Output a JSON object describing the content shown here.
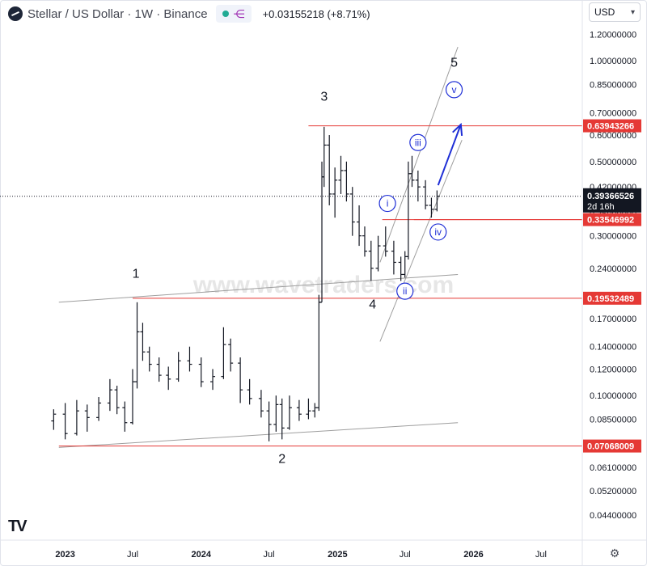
{
  "header": {
    "symbol_title": "Stellar / US Dollar · 1W · Binance",
    "change": "+0.03155218 (+8.71%)"
  },
  "currency_selector": {
    "value": "USD",
    "chevron": "chevron-down-icon"
  },
  "watermark": "www.wavetraders.com",
  "logo": "TV",
  "chart_data": {
    "type": "candlestick",
    "scale": "log",
    "ylim": [
      0.037,
      1.3
    ],
    "x_tick_labels": [
      "2023",
      "Jul",
      "2024",
      "Jul",
      "2025",
      "Jul",
      "2026",
      "Jul"
    ],
    "y_tick_labels": [
      "1.20000000",
      "1.00000000",
      "0.85000000",
      "0.70000000",
      "0.60000000",
      "0.50000000",
      "0.42000000",
      "0.35000000",
      "0.30000000",
      "0.24000000",
      "0.20000000",
      "0.17000000",
      "0.14000000",
      "0.12000000",
      "0.10000000",
      "0.08500000",
      "0.07000000",
      "0.06100000",
      "0.05200000",
      "0.04400000"
    ],
    "last_price": {
      "value": "0.39366526",
      "countdown": "2d 16h"
    },
    "horizontal_levels": [
      "0.63943266",
      "0.33546992",
      "0.19532489",
      "0.07068009"
    ],
    "wave_labels": [
      "1",
      "2",
      "3",
      "4",
      "5"
    ],
    "subwave_labels": [
      "i",
      "ii",
      "iii",
      "iv",
      "v"
    ],
    "colors": {
      "level": "#e53935",
      "subwave": "#1f2fd6",
      "label_bg": "#131722",
      "channel": "#9e9e9e"
    },
    "series": [
      {
        "t": "2022-12-01",
        "o": 0.084,
        "h": 0.091,
        "l": 0.079,
        "c": 0.088
      },
      {
        "t": "2023-01-01",
        "o": 0.088,
        "h": 0.095,
        "l": 0.074,
        "c": 0.077
      },
      {
        "t": "2023-02-01",
        "o": 0.077,
        "h": 0.097,
        "l": 0.076,
        "c": 0.09
      },
      {
        "t": "2023-03-01",
        "o": 0.09,
        "h": 0.094,
        "l": 0.078,
        "c": 0.086
      },
      {
        "t": "2023-04-01",
        "o": 0.086,
        "h": 0.099,
        "l": 0.084,
        "c": 0.095
      },
      {
        "t": "2023-05-01",
        "o": 0.095,
        "h": 0.112,
        "l": 0.09,
        "c": 0.104
      },
      {
        "t": "2023-05-20",
        "o": 0.104,
        "h": 0.107,
        "l": 0.088,
        "c": 0.092
      },
      {
        "t": "2023-06-10",
        "o": 0.092,
        "h": 0.096,
        "l": 0.078,
        "c": 0.083
      },
      {
        "t": "2023-07-01",
        "o": 0.083,
        "h": 0.12,
        "l": 0.082,
        "c": 0.11
      },
      {
        "t": "2023-07-13",
        "o": 0.11,
        "h": 0.19,
        "l": 0.105,
        "c": 0.155
      },
      {
        "t": "2023-07-28",
        "o": 0.155,
        "h": 0.165,
        "l": 0.127,
        "c": 0.135
      },
      {
        "t": "2023-08-15",
        "o": 0.135,
        "h": 0.14,
        "l": 0.118,
        "c": 0.124
      },
      {
        "t": "2023-09-10",
        "o": 0.124,
        "h": 0.13,
        "l": 0.11,
        "c": 0.115
      },
      {
        "t": "2023-10-05",
        "o": 0.115,
        "h": 0.122,
        "l": 0.104,
        "c": 0.112
      },
      {
        "t": "2023-11-01",
        "o": 0.112,
        "h": 0.135,
        "l": 0.11,
        "c": 0.127
      },
      {
        "t": "2023-12-01",
        "o": 0.127,
        "h": 0.14,
        "l": 0.118,
        "c": 0.124
      },
      {
        "t": "2024-01-01",
        "o": 0.124,
        "h": 0.13,
        "l": 0.106,
        "c": 0.11
      },
      {
        "t": "2024-02-01",
        "o": 0.11,
        "h": 0.12,
        "l": 0.104,
        "c": 0.114
      },
      {
        "t": "2024-03-01",
        "o": 0.114,
        "h": 0.16,
        "l": 0.112,
        "c": 0.142
      },
      {
        "t": "2024-03-20",
        "o": 0.142,
        "h": 0.148,
        "l": 0.118,
        "c": 0.125
      },
      {
        "t": "2024-04-15",
        "o": 0.125,
        "h": 0.13,
        "l": 0.095,
        "c": 0.104
      },
      {
        "t": "2024-05-10",
        "o": 0.104,
        "h": 0.112,
        "l": 0.094,
        "c": 0.098
      },
      {
        "t": "2024-06-10",
        "o": 0.098,
        "h": 0.104,
        "l": 0.086,
        "c": 0.09
      },
      {
        "t": "2024-07-01",
        "o": 0.09,
        "h": 0.096,
        "l": 0.073,
        "c": 0.082
      },
      {
        "t": "2024-07-20",
        "o": 0.082,
        "h": 0.1,
        "l": 0.078,
        "c": 0.094
      },
      {
        "t": "2024-08-05",
        "o": 0.094,
        "h": 0.098,
        "l": 0.074,
        "c": 0.08
      },
      {
        "t": "2024-08-25",
        "o": 0.08,
        "h": 0.1,
        "l": 0.079,
        "c": 0.092
      },
      {
        "t": "2024-09-20",
        "o": 0.092,
        "h": 0.097,
        "l": 0.084,
        "c": 0.088
      },
      {
        "t": "2024-10-15",
        "o": 0.088,
        "h": 0.098,
        "l": 0.085,
        "c": 0.09
      },
      {
        "t": "2024-11-01",
        "o": 0.09,
        "h": 0.095,
        "l": 0.086,
        "c": 0.092
      },
      {
        "t": "2024-11-12",
        "o": 0.092,
        "h": 0.2,
        "l": 0.09,
        "c": 0.19
      },
      {
        "t": "2024-11-20",
        "o": 0.19,
        "h": 0.5,
        "l": 0.19,
        "c": 0.45
      },
      {
        "t": "2024-11-26",
        "o": 0.45,
        "h": 0.635,
        "l": 0.42,
        "c": 0.56
      },
      {
        "t": "2024-12-10",
        "o": 0.56,
        "h": 0.6,
        "l": 0.37,
        "c": 0.4
      },
      {
        "t": "2024-12-25",
        "o": 0.4,
        "h": 0.48,
        "l": 0.34,
        "c": 0.44
      },
      {
        "t": "2025-01-10",
        "o": 0.44,
        "h": 0.52,
        "l": 0.4,
        "c": 0.47
      },
      {
        "t": "2025-01-25",
        "o": 0.47,
        "h": 0.5,
        "l": 0.38,
        "c": 0.4
      },
      {
        "t": "2025-02-10",
        "o": 0.4,
        "h": 0.42,
        "l": 0.3,
        "c": 0.33
      },
      {
        "t": "2025-02-28",
        "o": 0.33,
        "h": 0.37,
        "l": 0.28,
        "c": 0.3
      },
      {
        "t": "2025-03-15",
        "o": 0.3,
        "h": 0.32,
        "l": 0.26,
        "c": 0.27
      },
      {
        "t": "2025-04-01",
        "o": 0.27,
        "h": 0.29,
        "l": 0.22,
        "c": 0.24
      },
      {
        "t": "2025-04-20",
        "o": 0.24,
        "h": 0.3,
        "l": 0.235,
        "c": 0.28
      },
      {
        "t": "2025-05-10",
        "o": 0.28,
        "h": 0.32,
        "l": 0.26,
        "c": 0.27
      },
      {
        "t": "2025-06-01",
        "o": 0.27,
        "h": 0.29,
        "l": 0.23,
        "c": 0.25
      },
      {
        "t": "2025-06-20",
        "o": 0.25,
        "h": 0.26,
        "l": 0.22,
        "c": 0.23
      },
      {
        "t": "2025-07-01",
        "o": 0.23,
        "h": 0.27,
        "l": 0.225,
        "c": 0.26
      },
      {
        "t": "2025-07-10",
        "o": 0.26,
        "h": 0.5,
        "l": 0.255,
        "c": 0.46
      },
      {
        "t": "2025-07-20",
        "o": 0.46,
        "h": 0.52,
        "l": 0.42,
        "c": 0.44
      },
      {
        "t": "2025-08-05",
        "o": 0.44,
        "h": 0.47,
        "l": 0.38,
        "c": 0.42
      },
      {
        "t": "2025-08-25",
        "o": 0.42,
        "h": 0.44,
        "l": 0.36,
        "c": 0.37
      },
      {
        "t": "2025-09-10",
        "o": 0.37,
        "h": 0.39,
        "l": 0.34,
        "c": 0.36
      },
      {
        "t": "2025-09-25",
        "o": 0.36,
        "h": 0.41,
        "l": 0.355,
        "c": 0.394
      }
    ]
  }
}
